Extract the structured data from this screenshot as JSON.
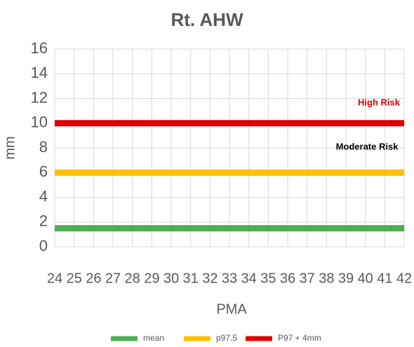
{
  "chart_data": {
    "type": "line",
    "title": "Rt. AHW",
    "xlabel": "PMA",
    "ylabel": "mm",
    "categories": [
      "24",
      "25",
      "26",
      "27",
      "28",
      "29",
      "30",
      "31",
      "32",
      "33",
      "34",
      "35",
      "36",
      "37",
      "38",
      "39",
      "40",
      "41",
      "42"
    ],
    "series": [
      {
        "name": "mean",
        "color": "#4caf50",
        "values": [
          1.5,
          1.5,
          1.5,
          1.5,
          1.5,
          1.5,
          1.5,
          1.5,
          1.5,
          1.5,
          1.5,
          1.5,
          1.5,
          1.5,
          1.5,
          1.5,
          1.5,
          1.5,
          1.5
        ]
      },
      {
        "name": "p97.5",
        "color": "#ffc000",
        "values": [
          6,
          6,
          6,
          6,
          6,
          6,
          6,
          6,
          6,
          6,
          6,
          6,
          6,
          6,
          6,
          6,
          6,
          6,
          6
        ]
      },
      {
        "name": "P97 + 4mm",
        "color": "#e00000",
        "values": [
          10,
          10,
          10,
          10,
          10,
          10,
          10,
          10,
          10,
          10,
          10,
          10,
          10,
          10,
          10,
          10,
          10,
          10,
          10
        ]
      }
    ],
    "ylim": [
      0,
      16
    ],
    "yticks": [
      0,
      2,
      4,
      6,
      8,
      10,
      12,
      14,
      16
    ],
    "grid": true,
    "annotations": [
      {
        "text": "High Risk",
        "color": "#e00000"
      },
      {
        "text": "Moderate Risk",
        "color": "#000000"
      }
    ]
  }
}
